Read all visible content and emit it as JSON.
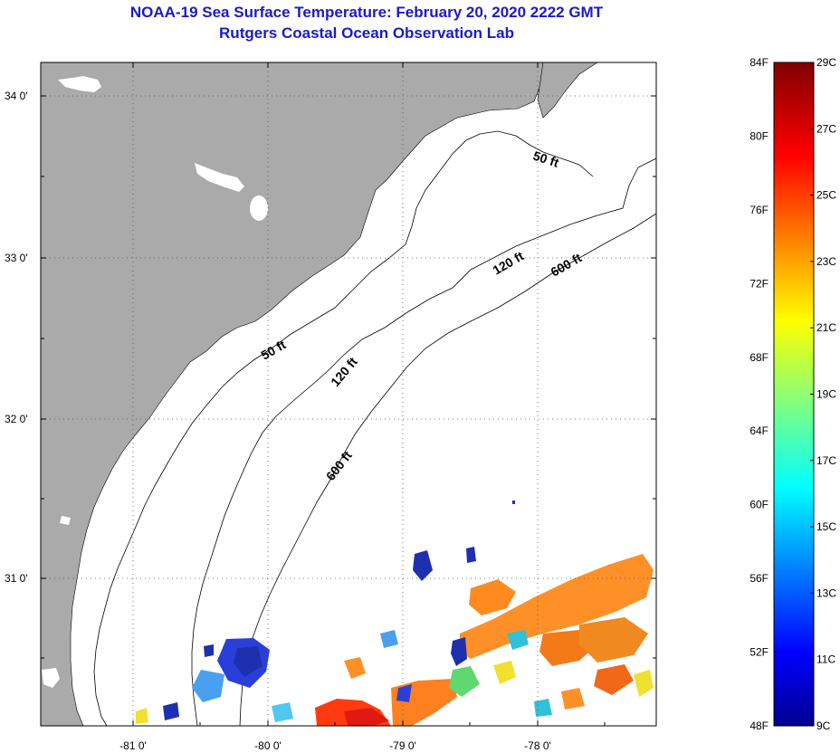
{
  "header": {
    "title": "NOAA-19 Sea Surface Temperature:  February 20, 2020 2222 GMT",
    "subtitle": "Rutgers Coastal Ocean Observation Lab"
  },
  "map": {
    "lat_labels": [
      "34 0'",
      "33 0'",
      "32 0'",
      "31 0'"
    ],
    "lon_labels": [
      "-81 0'",
      "-80 0'",
      "-79 0'",
      "-78 0'"
    ],
    "contour_labels": {
      "c50_north": "50 ft",
      "c50_mid": "50 ft",
      "c120_north": "120 ft",
      "c120_mid": "120 ft",
      "c600_north": "600 ft",
      "c600_south": "600 ft"
    },
    "colors": {
      "land": "#aaaaaa",
      "ocean": "#ffffff",
      "grid": "#555555"
    }
  },
  "colorbar": {
    "fahrenheit_labels": [
      "84F",
      "80F",
      "76F",
      "72F",
      "68F",
      "64F",
      "60F",
      "56F",
      "52F",
      "48F"
    ],
    "celsius_labels": [
      "29C",
      "27C",
      "25C",
      "23C",
      "21C",
      "19C",
      "17C",
      "15C",
      "13C",
      "11C",
      "9C"
    ],
    "range_f": [
      48,
      84
    ],
    "range_c": [
      9,
      29
    ],
    "colormap": "jet"
  }
}
